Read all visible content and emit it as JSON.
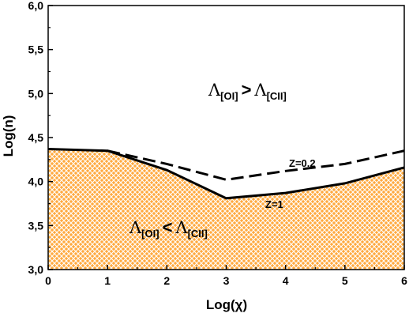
{
  "chart_data": {
    "type": "area",
    "xlabel": "Log(χ)",
    "ylabel": "Log(n)",
    "xlim": [
      0,
      6
    ],
    "ylim": [
      3.0,
      6.0
    ],
    "x_ticks": [
      "0",
      "1",
      "2",
      "3",
      "4",
      "5",
      "6"
    ],
    "y_ticks": [
      "3,0",
      "3,5",
      "4,0",
      "4,5",
      "5,0",
      "5,5",
      "6,0"
    ],
    "grid": false,
    "series": [
      {
        "name": "Z=1",
        "style": "solid",
        "fill": "hatched-orange-below",
        "x": [
          0,
          1,
          2,
          3,
          4,
          5,
          6
        ],
        "y": [
          4.37,
          4.35,
          4.13,
          3.81,
          3.87,
          3.98,
          4.16
        ]
      },
      {
        "name": "Z=0.2",
        "style": "dashed",
        "x": [
          0,
          1,
          2,
          3,
          4,
          5,
          6
        ],
        "y": [
          4.37,
          4.35,
          4.2,
          4.02,
          4.12,
          4.2,
          4.35
        ]
      }
    ],
    "annotations": {
      "upper_region": {
        "lambda": "Λ",
        "sub_left": "[OI]",
        "op": ">",
        "sub_right": "[CII]"
      },
      "lower_region": {
        "lambda": "Λ",
        "sub_left": "[OI]",
        "op": "<",
        "sub_right": "[CII]"
      }
    },
    "colors": {
      "fill": "#ffaa40",
      "hatch": "#ffffff",
      "line": "#000000"
    }
  }
}
